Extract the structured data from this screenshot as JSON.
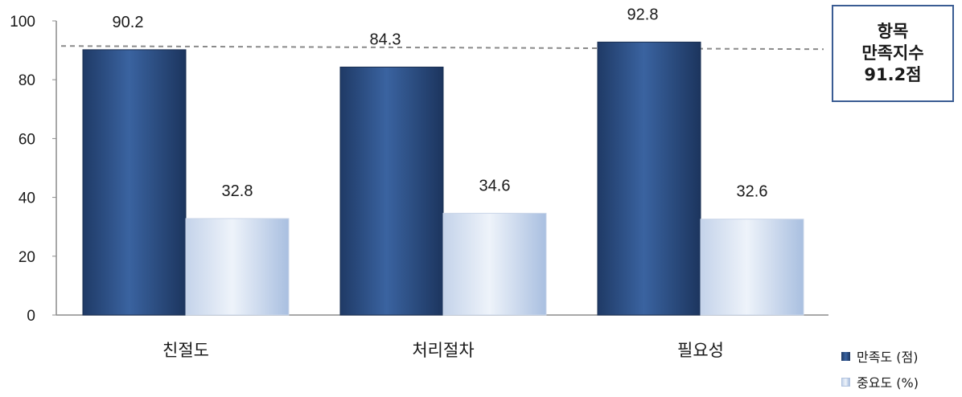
{
  "chart_data": {
    "type": "bar",
    "categories": [
      "친절도",
      "처리절차",
      "필요성"
    ],
    "series": [
      {
        "name": "만족도 (점)",
        "values": [
          90.2,
          84.3,
          92.8
        ],
        "color": "#2e5285"
      },
      {
        "name": "중요도 (%)",
        "values": [
          32.8,
          34.6,
          32.6
        ],
        "color": "#b9cae5"
      }
    ],
    "ylim": [
      0,
      100
    ],
    "yticks": [
      "0",
      "20",
      "40",
      "60",
      "80",
      "100"
    ],
    "reference_line": {
      "value": 91.2,
      "style": "dashed"
    },
    "legend_position": "bottom-right",
    "grid": false
  },
  "index_box": {
    "line1": "항목",
    "line2": "만족지수",
    "line3": "91.2점"
  },
  "legend": {
    "items": [
      "만족도 (점)",
      "중요도 (%)"
    ]
  }
}
